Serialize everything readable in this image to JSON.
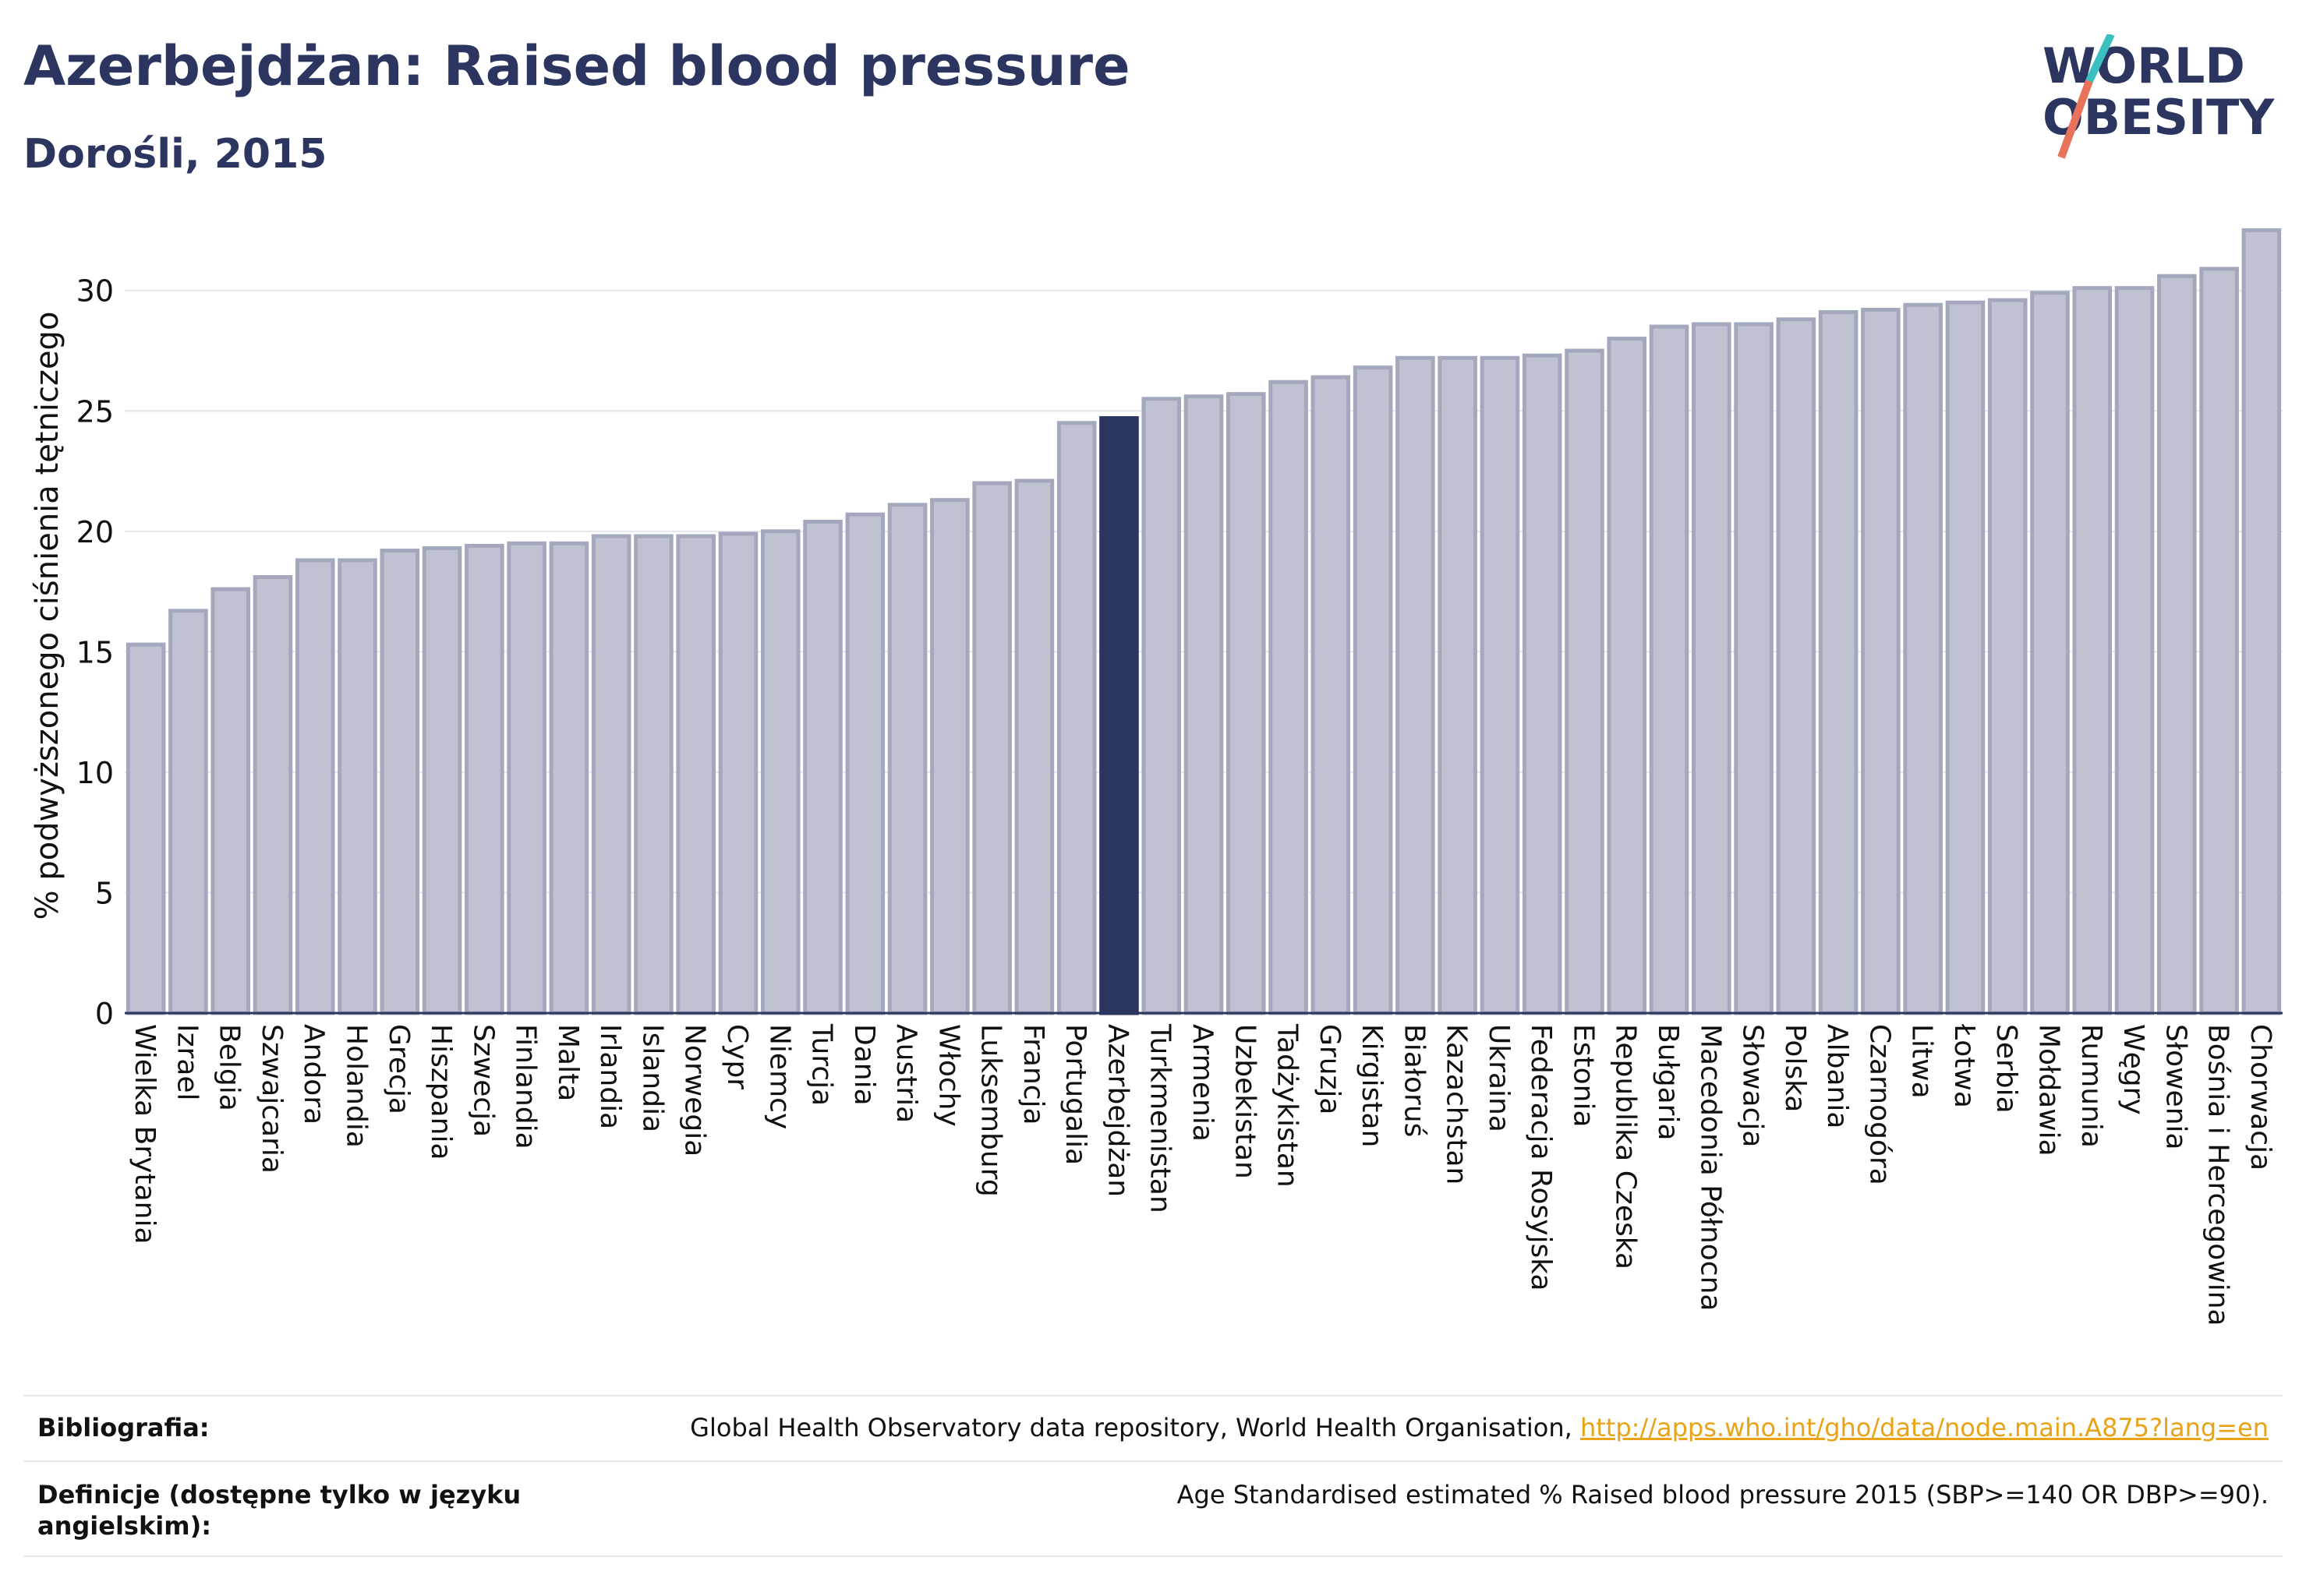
{
  "header": {
    "title": "Azerbejdżan: Raised blood pressure",
    "subtitle": "Dorośli, 2015"
  },
  "logo": {
    "line1": "WORLD",
    "line2": "OBESITY",
    "colors": {
      "text": "#2b3560",
      "slash_teal": "#3bbfc1",
      "slash_coral": "#e8735a"
    }
  },
  "footer": {
    "bibliography_label": "Bibliografia:",
    "bibliography_text": "Global Health Observatory data repository, World Health Organisation, ",
    "bibliography_link": "http://apps.who.int/gho/data/node.main.A875?lang=en",
    "definitions_label": "Definicje (dostępne tylko w języku angielskim):",
    "definitions_text": "Age Standardised estimated % Raised blood pressure 2015 (SBP>=140 OR DBP>=90)."
  },
  "chart_data": {
    "type": "bar",
    "title": "Azerbejdżan: Raised blood pressure",
    "subtitle": "Dorośli, 2015",
    "xlabel": "",
    "ylabel": "% podwyższonego ciśnienia tętniczego",
    "ylim": [
      0,
      33
    ],
    "yticks": [
      0,
      5,
      10,
      15,
      20,
      25,
      30
    ],
    "grid": true,
    "highlight": "Azerbejdżan",
    "colors": {
      "bar": "#bfc2d1",
      "bar_edge": "#a3a8bd",
      "highlight": "#2b3560"
    },
    "categories": [
      "Wielka Brytania",
      "Izrael",
      "Belgia",
      "Szwajcaria",
      "Andora",
      "Holandia",
      "Grecja",
      "Hiszpania",
      "Szwecja",
      "Finlandia",
      "Malta",
      "Irlandia",
      "Islandia",
      "Norwegia",
      "Cypr",
      "Niemcy",
      "Turcja",
      "Dania",
      "Austria",
      "Włochy",
      "Luksemburg",
      "Francja",
      "Portugalia",
      "Azerbejdżan",
      "Turkmenistan",
      "Armenia",
      "Uzbekistan",
      "Tadżykistan",
      "Gruzja",
      "Kirgistan",
      "Białoruś",
      "Kazachstan",
      "Ukraina",
      "Federacja Rosyjska",
      "Estonia",
      "Republika Czeska",
      "Bułgaria",
      "Macedonia Północna",
      "Słowacja",
      "Polska",
      "Albania",
      "Czarnogóra",
      "Litwa",
      "Łotwa",
      "Serbia",
      "Mołdawia",
      "Rumunia",
      "Węgry",
      "Słowenia",
      "Bośnia i Hercegowina",
      "Chorwacja"
    ],
    "values": [
      15.3,
      16.7,
      17.6,
      18.1,
      18.8,
      18.8,
      19.2,
      19.3,
      19.4,
      19.5,
      19.5,
      19.8,
      19.8,
      19.8,
      19.9,
      20.0,
      20.4,
      20.7,
      21.1,
      21.3,
      22.0,
      22.1,
      24.5,
      24.7,
      25.5,
      25.6,
      25.7,
      26.2,
      26.4,
      26.8,
      27.2,
      27.2,
      27.2,
      27.3,
      27.5,
      28.0,
      28.5,
      28.6,
      28.6,
      28.8,
      29.1,
      29.2,
      29.4,
      29.5,
      29.6,
      29.9,
      30.1,
      30.1,
      30.6,
      30.9,
      32.5
    ]
  }
}
